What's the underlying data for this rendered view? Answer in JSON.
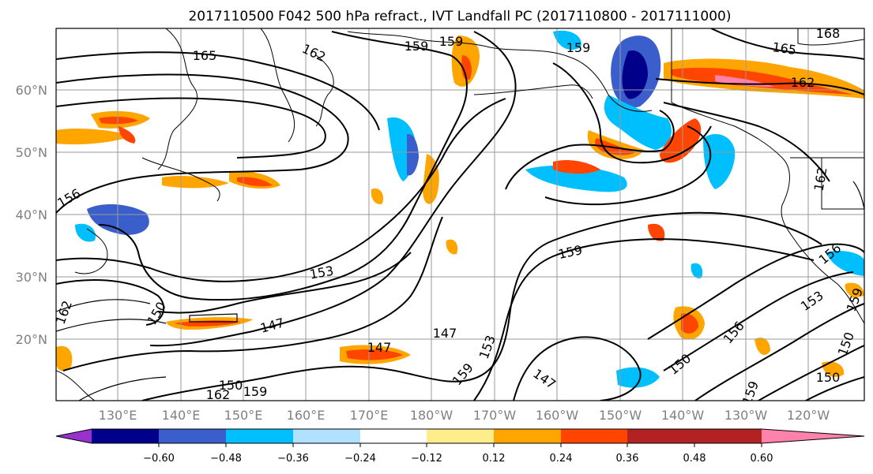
{
  "title": "2017110500 F042 500 hPa refract., IVT Landfall PC (2017110800 - 2017111000)",
  "lat_labels": [
    "60°N",
    "50°N",
    "40°N",
    "30°N",
    "20°N"
  ],
  "lon_labels": [
    "130°E",
    "140°E",
    "150°E",
    "160°E",
    "170°E",
    "180°W",
    "170°W",
    "160°W",
    "150°W",
    "140°W",
    "130°W",
    "120°W"
  ],
  "colorbar": {
    "ticks": [
      "−0.60",
      "−0.48",
      "−0.36",
      "−0.24",
      "−0.12",
      "0.12",
      "0.24",
      "0.36",
      "0.48",
      "0.60"
    ],
    "colors": [
      "#9932cc",
      "#00008b",
      "#3a5fcd",
      "#00bfff",
      "#b0e2ff",
      "#ffffff",
      "#ffec8b",
      "#ffa500",
      "#ff4500",
      "#b22222",
      "#ff82ab"
    ]
  },
  "contour_labels": [
    "165",
    "162",
    "159",
    "159",
    "159",
    "165",
    "162",
    "168",
    "162",
    "156",
    "153",
    "159",
    "150",
    "147",
    "147",
    "147",
    "153",
    "159",
    "147",
    "150",
    "156",
    "153",
    "156",
    "150",
    "150",
    "159",
    "162",
    "162",
    "159",
    "150",
    "159"
  ]
}
